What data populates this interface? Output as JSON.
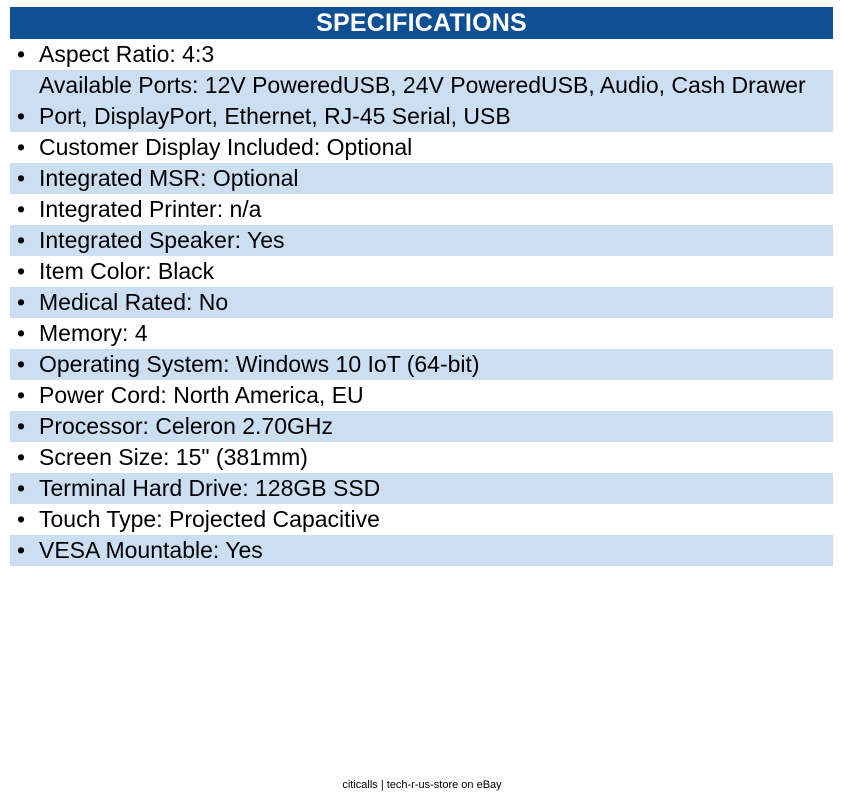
{
  "header": {
    "title": "SPECIFICATIONS"
  },
  "specs": [
    "Aspect Ratio: 4:3",
    "Available Ports: 12V PoweredUSB, 24V PoweredUSB, Audio, Cash Drawer Port, DisplayPort, Ethernet, RJ-45 Serial, USB",
    "Customer Display Included: Optional",
    "Integrated MSR: Optional",
    "Integrated Printer: n/a",
    "Integrated Speaker: Yes",
    "Item Color: Black",
    "Medical Rated: No",
    "Memory: 4",
    "Operating System: Windows 10 IoT (64-bit)",
    "Power Cord: North America, EU",
    "Processor: Celeron 2.70GHz",
    "Screen Size: 15\" (381mm)",
    "Terminal Hard Drive: 128GB SSD",
    "Touch Type: Projected Capacitive",
    "VESA Mountable: Yes"
  ],
  "bullet_char": "•",
  "footer": {
    "text": "citicalls | tech-r-us-store on eBay"
  },
  "colors": {
    "header_bg": "#0f4f94",
    "header_text": "#ffffff",
    "row_shade": "#ccdff2"
  }
}
